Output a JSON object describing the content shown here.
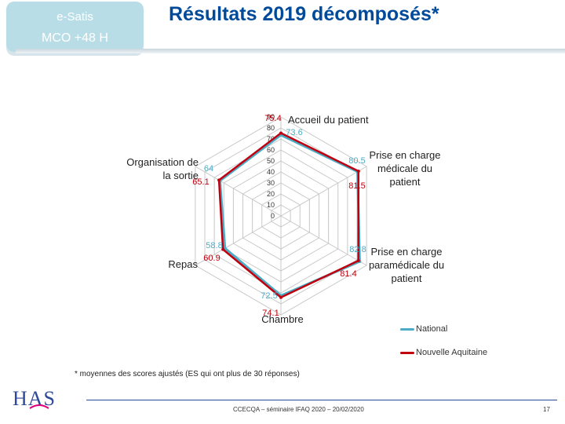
{
  "badge": {
    "line1": "e-Satis",
    "line2": "MCO +48 H"
  },
  "title": "Résultats 2019 décomposés*",
  "footnote": "* moyennes des scores ajustés (ES qui ont plus de 30 réponses)",
  "footer": {
    "center": "CCECQA – séminaire IFAQ 2020 – 20/02/2020",
    "page": "17"
  },
  "logo": {
    "text": "HAS"
  },
  "colors": {
    "national": "#4bacc6",
    "nouvelle_aquitaine": "#c0000e",
    "title": "#004a99"
  },
  "chart_data": {
    "type": "radar",
    "axes": [
      "Accueil du patient",
      "Prise en charge médicale du patient",
      "Prise en charge paramédicale du patient",
      "Chambre",
      "Repas",
      "Organisation de la sortie"
    ],
    "axis_label_lines": [
      [
        "Accueil du patient"
      ],
      [
        "Prise en charge",
        "médicale du",
        "patient"
      ],
      [
        "Prise en charge",
        "paramédicale du",
        "patient"
      ],
      [
        "Chambre"
      ],
      [
        "Repas"
      ],
      [
        "Organisation de",
        "la sortie"
      ]
    ],
    "rlim": [
      0,
      90
    ],
    "ticks": [
      "0",
      "10",
      "20",
      "30",
      "40",
      "50",
      "60",
      "70",
      "80",
      "90"
    ],
    "series": [
      {
        "name": "National",
        "values": [
          73.6,
          80.5,
          82.8,
          72.5,
          58.8,
          64
        ],
        "labels": [
          "73.6",
          "80.5",
          "82.8",
          "72.5",
          "58.8",
          "64"
        ]
      },
      {
        "name": "Nouvelle Aquitaine",
        "values": [
          75.4,
          81.5,
          81.4,
          74.1,
          60.9,
          65.1
        ],
        "labels": [
          "75.4",
          "81.5",
          "81.4",
          "74.1",
          "60.9",
          "65.1"
        ]
      }
    ],
    "grid": true,
    "legend": "bottom-right"
  }
}
